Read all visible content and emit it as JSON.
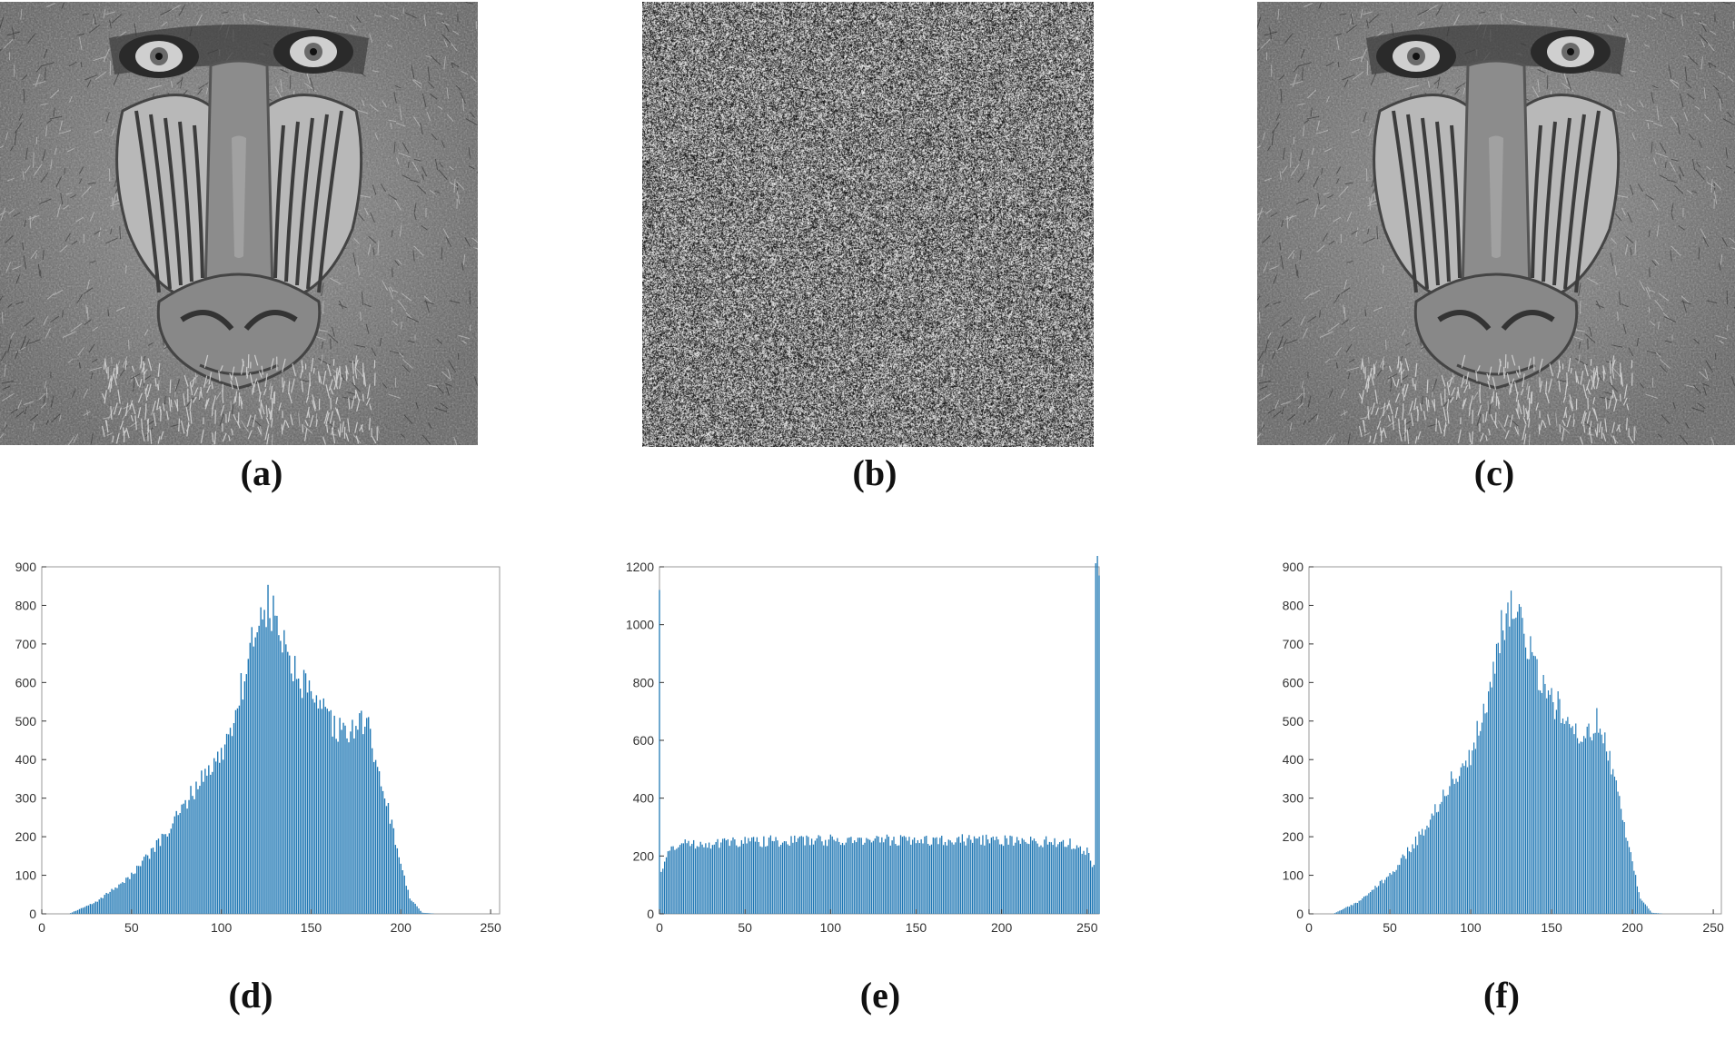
{
  "panels": {
    "a": {
      "caption": "(a)",
      "subject": "plain-image"
    },
    "b": {
      "caption": "(b)",
      "subject": "cipher-image"
    },
    "c": {
      "caption": "(c)",
      "subject": "decrypted-image"
    },
    "d": {
      "caption": "(d)"
    },
    "e": {
      "caption": "(e)"
    },
    "f": {
      "caption": "(f)"
    }
  },
  "colors": {
    "bar": "#1f77b4",
    "axis": "#333333",
    "frame": "#9a9a9a"
  },
  "chart_data": [
    {
      "id": "d",
      "type": "bar",
      "title": "",
      "xlabel": "",
      "ylabel": "",
      "xlim": [
        0,
        255
      ],
      "ylim": [
        0,
        900
      ],
      "xticks": [
        0,
        50,
        100,
        150,
        200,
        250
      ],
      "yticks": [
        0,
        100,
        200,
        300,
        400,
        500,
        600,
        700,
        800,
        900
      ],
      "shape_keypoints": {
        "x": [
          15,
          30,
          50,
          70,
          90,
          100,
          110,
          120,
          125,
          130,
          140,
          150,
          160,
          170,
          180,
          190,
          200,
          205,
          212,
          220
        ],
        "y": [
          0,
          30,
          100,
          210,
          360,
          410,
          560,
          760,
          800,
          760,
          630,
          560,
          500,
          460,
          510,
          330,
          130,
          40,
          3,
          0
        ]
      }
    },
    {
      "id": "e",
      "type": "bar",
      "title": "",
      "xlabel": "",
      "ylabel": "",
      "xlim": [
        0,
        257
      ],
      "ylim": [
        0,
        1200
      ],
      "xticks": [
        0,
        50,
        100,
        150,
        200,
        250
      ],
      "yticks": [
        0,
        200,
        400,
        600,
        800,
        1000,
        1200
      ],
      "shape_keypoints": {
        "x": [
          0,
          1,
          5,
          10,
          50,
          100,
          150,
          200,
          240,
          250,
          254,
          255
        ],
        "y": [
          1120,
          150,
          210,
          240,
          250,
          255,
          255,
          255,
          245,
          215,
          160,
          1170
        ]
      }
    },
    {
      "id": "f",
      "type": "bar",
      "title": "",
      "xlabel": "",
      "ylabel": "",
      "xlim": [
        0,
        255
      ],
      "ylim": [
        0,
        900
      ],
      "xticks": [
        0,
        50,
        100,
        150,
        200,
        250
      ],
      "yticks": [
        0,
        100,
        200,
        300,
        400,
        500,
        600,
        700,
        800,
        900
      ],
      "shape_keypoints": {
        "x": [
          15,
          30,
          50,
          70,
          90,
          100,
          110,
          120,
          125,
          130,
          140,
          150,
          160,
          170,
          180,
          190,
          200,
          205,
          212,
          220
        ],
        "y": [
          0,
          30,
          100,
          210,
          360,
          410,
          560,
          760,
          800,
          760,
          630,
          560,
          500,
          460,
          510,
          330,
          130,
          40,
          3,
          0
        ]
      }
    }
  ]
}
